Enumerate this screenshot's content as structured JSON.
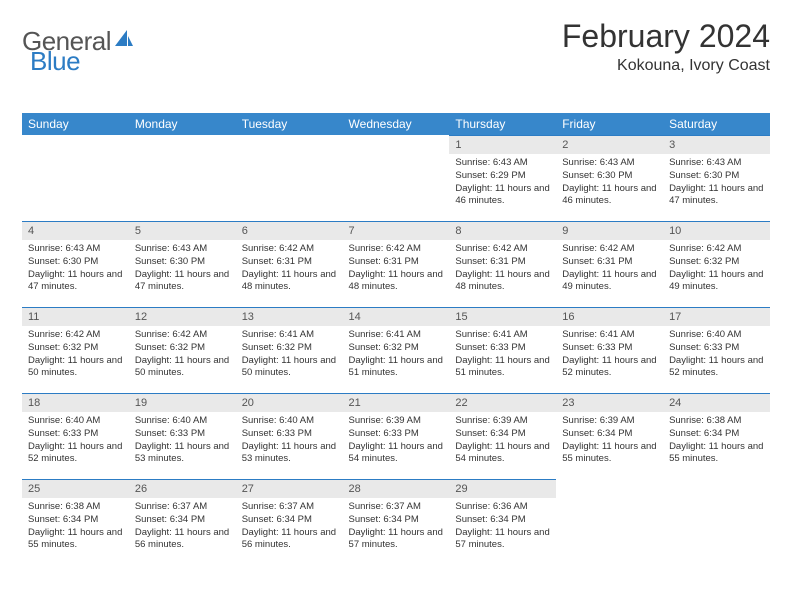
{
  "logo": {
    "general": "General",
    "blue": "Blue"
  },
  "title": "February 2024",
  "location": "Kokouna, Ivory Coast",
  "colors": {
    "header_bg": "#3787cb",
    "header_text": "#ffffff",
    "daynum_bg": "#e9e9e9",
    "daynum_border": "#2c7cc4",
    "logo_blue": "#2c7cc4",
    "body_text": "#333333"
  },
  "weekdays": [
    "Sunday",
    "Monday",
    "Tuesday",
    "Wednesday",
    "Thursday",
    "Friday",
    "Saturday"
  ],
  "first_weekday_index": 4,
  "days": [
    {
      "n": 1,
      "sunrise": "6:43 AM",
      "sunset": "6:29 PM",
      "daylight": "11 hours and 46 minutes."
    },
    {
      "n": 2,
      "sunrise": "6:43 AM",
      "sunset": "6:30 PM",
      "daylight": "11 hours and 46 minutes."
    },
    {
      "n": 3,
      "sunrise": "6:43 AM",
      "sunset": "6:30 PM",
      "daylight": "11 hours and 47 minutes."
    },
    {
      "n": 4,
      "sunrise": "6:43 AM",
      "sunset": "6:30 PM",
      "daylight": "11 hours and 47 minutes."
    },
    {
      "n": 5,
      "sunrise": "6:43 AM",
      "sunset": "6:30 PM",
      "daylight": "11 hours and 47 minutes."
    },
    {
      "n": 6,
      "sunrise": "6:42 AM",
      "sunset": "6:31 PM",
      "daylight": "11 hours and 48 minutes."
    },
    {
      "n": 7,
      "sunrise": "6:42 AM",
      "sunset": "6:31 PM",
      "daylight": "11 hours and 48 minutes."
    },
    {
      "n": 8,
      "sunrise": "6:42 AM",
      "sunset": "6:31 PM",
      "daylight": "11 hours and 48 minutes."
    },
    {
      "n": 9,
      "sunrise": "6:42 AM",
      "sunset": "6:31 PM",
      "daylight": "11 hours and 49 minutes."
    },
    {
      "n": 10,
      "sunrise": "6:42 AM",
      "sunset": "6:32 PM",
      "daylight": "11 hours and 49 minutes."
    },
    {
      "n": 11,
      "sunrise": "6:42 AM",
      "sunset": "6:32 PM",
      "daylight": "11 hours and 50 minutes."
    },
    {
      "n": 12,
      "sunrise": "6:42 AM",
      "sunset": "6:32 PM",
      "daylight": "11 hours and 50 minutes."
    },
    {
      "n": 13,
      "sunrise": "6:41 AM",
      "sunset": "6:32 PM",
      "daylight": "11 hours and 50 minutes."
    },
    {
      "n": 14,
      "sunrise": "6:41 AM",
      "sunset": "6:32 PM",
      "daylight": "11 hours and 51 minutes."
    },
    {
      "n": 15,
      "sunrise": "6:41 AM",
      "sunset": "6:33 PM",
      "daylight": "11 hours and 51 minutes."
    },
    {
      "n": 16,
      "sunrise": "6:41 AM",
      "sunset": "6:33 PM",
      "daylight": "11 hours and 52 minutes."
    },
    {
      "n": 17,
      "sunrise": "6:40 AM",
      "sunset": "6:33 PM",
      "daylight": "11 hours and 52 minutes."
    },
    {
      "n": 18,
      "sunrise": "6:40 AM",
      "sunset": "6:33 PM",
      "daylight": "11 hours and 52 minutes."
    },
    {
      "n": 19,
      "sunrise": "6:40 AM",
      "sunset": "6:33 PM",
      "daylight": "11 hours and 53 minutes."
    },
    {
      "n": 20,
      "sunrise": "6:40 AM",
      "sunset": "6:33 PM",
      "daylight": "11 hours and 53 minutes."
    },
    {
      "n": 21,
      "sunrise": "6:39 AM",
      "sunset": "6:33 PM",
      "daylight": "11 hours and 54 minutes."
    },
    {
      "n": 22,
      "sunrise": "6:39 AM",
      "sunset": "6:34 PM",
      "daylight": "11 hours and 54 minutes."
    },
    {
      "n": 23,
      "sunrise": "6:39 AM",
      "sunset": "6:34 PM",
      "daylight": "11 hours and 55 minutes."
    },
    {
      "n": 24,
      "sunrise": "6:38 AM",
      "sunset": "6:34 PM",
      "daylight": "11 hours and 55 minutes."
    },
    {
      "n": 25,
      "sunrise": "6:38 AM",
      "sunset": "6:34 PM",
      "daylight": "11 hours and 55 minutes."
    },
    {
      "n": 26,
      "sunrise": "6:37 AM",
      "sunset": "6:34 PM",
      "daylight": "11 hours and 56 minutes."
    },
    {
      "n": 27,
      "sunrise": "6:37 AM",
      "sunset": "6:34 PM",
      "daylight": "11 hours and 56 minutes."
    },
    {
      "n": 28,
      "sunrise": "6:37 AM",
      "sunset": "6:34 PM",
      "daylight": "11 hours and 57 minutes."
    },
    {
      "n": 29,
      "sunrise": "6:36 AM",
      "sunset": "6:34 PM",
      "daylight": "11 hours and 57 minutes."
    }
  ],
  "labels": {
    "sunrise": "Sunrise:",
    "sunset": "Sunset:",
    "daylight": "Daylight:"
  }
}
